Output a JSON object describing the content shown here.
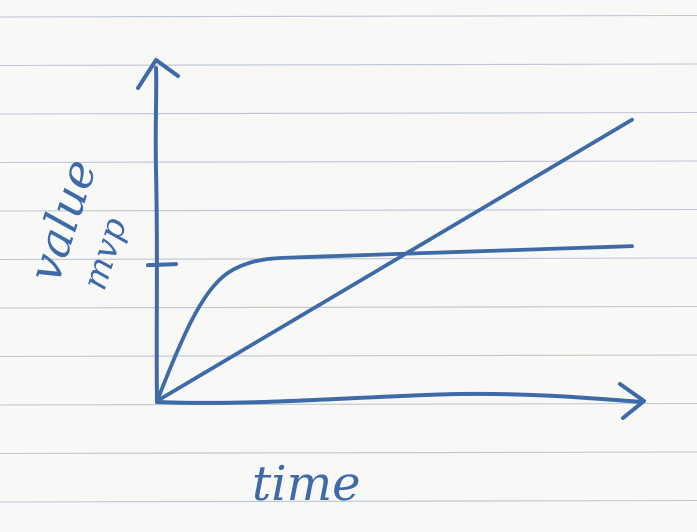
{
  "colors": {
    "paper": "#f8f8f6",
    "rule_line": "#bcc6d6",
    "ink": "#3e6aa8"
  },
  "chart_data": {
    "type": "line",
    "xlabel": "time",
    "ylabel_line1": "value",
    "ylabel_line2": "mvp",
    "ytick_label": "",
    "xlim": [
      0,
      10
    ],
    "ylim": [
      0,
      10
    ],
    "grid": false,
    "mvp_level": 4.3,
    "series": [
      {
        "x": [
          0,
          0.4,
          0.8,
          1.2,
          1.6,
          2.2,
          3.0,
          4.0,
          5.0,
          6.0,
          7.0,
          8.0,
          9.0,
          10.0
        ],
        "values": [
          0,
          1.5,
          2.8,
          3.7,
          4.2,
          4.5,
          4.55,
          4.6,
          4.65,
          4.7,
          4.75,
          4.8,
          4.85,
          4.9
        ]
      },
      {
        "x": [
          0,
          10
        ],
        "values": [
          0,
          8.9
        ]
      }
    ]
  }
}
